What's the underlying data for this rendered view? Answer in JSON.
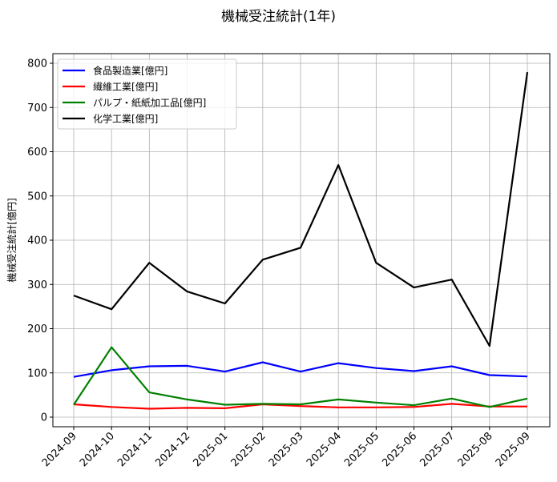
{
  "chart_data": {
    "type": "line",
    "title": "機械受注統計(1年)",
    "xlabel": "",
    "ylabel": "機械受注統計[億円]",
    "ylim": [
      -20,
      824
    ],
    "yticks": [
      0,
      100,
      200,
      300,
      400,
      500,
      600,
      700,
      800
    ],
    "grid": true,
    "legend_position": "upper left",
    "x": [
      "2024-09",
      "2024-10",
      "2024-11",
      "2024-12",
      "2025-01",
      "2025-02",
      "2025-03",
      "2025-04",
      "2025-05",
      "2025-06",
      "2025-07",
      "2025-08",
      "2025-09"
    ],
    "series": [
      {
        "name": "食品製造業[億円]",
        "color": "#0000ff",
        "values": [
          91,
          106,
          115,
          116,
          103,
          124,
          103,
          122,
          111,
          104,
          115,
          95,
          92
        ]
      },
      {
        "name": "繊維工業[億円]",
        "color": "#ff0000",
        "values": [
          29,
          23,
          19,
          21,
          20,
          29,
          25,
          22,
          22,
          23,
          30,
          24,
          24
        ]
      },
      {
        "name": "パルプ・紙紙加工品[億円]",
        "color": "#008000",
        "values": [
          28,
          158,
          56,
          40,
          28,
          30,
          29,
          40,
          33,
          27,
          42,
          23,
          42
        ]
      },
      {
        "name": "化学工業[億円]",
        "color": "#000000",
        "values": [
          275,
          244,
          349,
          284,
          257,
          356,
          383,
          570,
          349,
          293,
          311,
          161,
          780
        ]
      }
    ]
  }
}
